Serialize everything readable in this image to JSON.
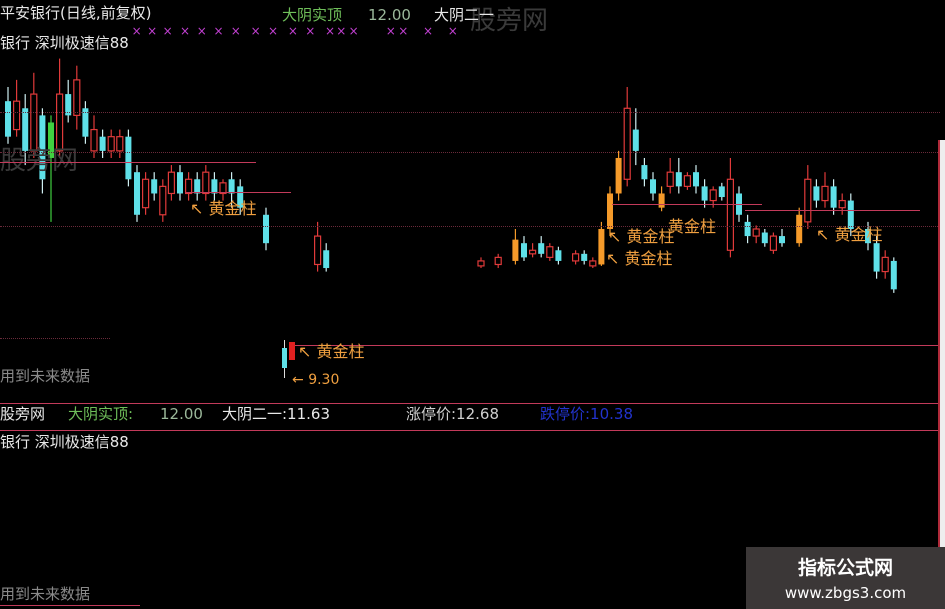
{
  "header": {
    "title": "平安银行(日线,前复权)",
    "ind1_label": "大阴实顶",
    "ind1_value": "12.00",
    "ind2_label": "大阴二一",
    "subtitle": "银行 深圳极速信88"
  },
  "info_bar": {
    "site": "股旁网",
    "ind1_label": "大阴实顶:",
    "ind1_value": "12.00",
    "ind2": "大阴二一:11.63",
    "limit_up": "涨停价:12.68",
    "limit_down": "跌停价:10.38",
    "subtitle": "银行 深圳极速信88"
  },
  "watermarks": {
    "site": "股旁网",
    "future_data": "用到未来数据"
  },
  "annotations": {
    "golden": "黄金柱",
    "arrow": "↖",
    "low_price": "9.30"
  },
  "badge": {
    "name": "指标公式网",
    "url": "www.zbgs3.com"
  },
  "colors": {
    "up": "#e03a3a",
    "down": "#5fe0e8",
    "golden": "#f59a2a",
    "special": "#40d040",
    "line": "#c23a5a"
  },
  "chart_data": {
    "type": "candlestick",
    "title": "平安银行(日线,前复权)",
    "reference_lines": [
      12.0,
      11.63
    ],
    "candles": [
      {
        "i": 0,
        "o": 12.1,
        "c": 11.6,
        "h": 12.3,
        "l": 11.5,
        "k": "down"
      },
      {
        "i": 1,
        "o": 11.7,
        "c": 12.1,
        "h": 12.4,
        "l": 11.6,
        "k": "up"
      },
      {
        "i": 2,
        "o": 12.0,
        "c": 11.4,
        "h": 12.2,
        "l": 11.2,
        "k": "down"
      },
      {
        "i": 3,
        "o": 11.4,
        "c": 12.2,
        "h": 12.5,
        "l": 11.3,
        "k": "up"
      },
      {
        "i": 4,
        "o": 11.9,
        "c": 11.0,
        "h": 12.0,
        "l": 10.8,
        "k": "down"
      },
      {
        "i": 5,
        "o": 11.3,
        "c": 11.8,
        "h": 11.9,
        "l": 10.4,
        "k": "special"
      },
      {
        "i": 6,
        "o": 11.4,
        "c": 12.2,
        "h": 12.7,
        "l": 11.3,
        "k": "up"
      },
      {
        "i": 7,
        "o": 12.2,
        "c": 11.9,
        "h": 12.4,
        "l": 11.8,
        "k": "down"
      },
      {
        "i": 8,
        "o": 11.9,
        "c": 12.4,
        "h": 12.6,
        "l": 11.7,
        "k": "up"
      },
      {
        "i": 9,
        "o": 12.0,
        "c": 11.6,
        "h": 12.1,
        "l": 11.5,
        "k": "down"
      },
      {
        "i": 10,
        "o": 11.4,
        "c": 11.7,
        "h": 11.9,
        "l": 11.3,
        "k": "up"
      },
      {
        "i": 11,
        "o": 11.6,
        "c": 11.4,
        "h": 11.7,
        "l": 11.3,
        "k": "down"
      },
      {
        "i": 12,
        "o": 11.4,
        "c": 11.6,
        "h": 11.7,
        "l": 11.3,
        "k": "up"
      },
      {
        "i": 13,
        "o": 11.4,
        "c": 11.6,
        "h": 11.7,
        "l": 11.3,
        "k": "up"
      },
      {
        "i": 14,
        "o": 11.6,
        "c": 11.0,
        "h": 11.7,
        "l": 10.9,
        "k": "down"
      },
      {
        "i": 15,
        "o": 11.1,
        "c": 10.5,
        "h": 11.2,
        "l": 10.4,
        "k": "down"
      },
      {
        "i": 16,
        "o": 10.6,
        "c": 11.0,
        "h": 11.1,
        "l": 10.5,
        "k": "up"
      },
      {
        "i": 17,
        "o": 11.0,
        "c": 10.8,
        "h": 11.1,
        "l": 10.7,
        "k": "down"
      },
      {
        "i": 18,
        "o": 10.5,
        "c": 10.9,
        "h": 11.0,
        "l": 10.4,
        "k": "up"
      },
      {
        "i": 19,
        "o": 10.8,
        "c": 11.1,
        "h": 11.2,
        "l": 10.7,
        "k": "up"
      },
      {
        "i": 20,
        "o": 11.1,
        "c": 10.8,
        "h": 11.2,
        "l": 10.7,
        "k": "down"
      },
      {
        "i": 21,
        "o": 10.8,
        "c": 11.0,
        "h": 11.1,
        "l": 10.7,
        "k": "up"
      },
      {
        "i": 22,
        "o": 11.0,
        "c": 10.8,
        "h": 11.1,
        "l": 10.7,
        "k": "down"
      },
      {
        "i": 23,
        "o": 10.8,
        "c": 11.1,
        "h": 11.2,
        "l": 10.7,
        "k": "up"
      },
      {
        "i": 24,
        "o": 11.0,
        "c": 10.8,
        "h": 11.1,
        "l": 10.7,
        "k": "down"
      },
      {
        "i": 25,
        "o": 10.8,
        "c": 10.95,
        "h": 11.0,
        "l": 10.7,
        "k": "up"
      },
      {
        "i": 26,
        "o": 11.0,
        "c": 10.8,
        "h": 11.1,
        "l": 10.6,
        "k": "down"
      },
      {
        "i": 27,
        "o": 10.9,
        "c": 10.6,
        "h": 11.0,
        "l": 10.5,
        "k": "down"
      },
      {
        "i": 30,
        "o": 10.5,
        "c": 10.1,
        "h": 10.6,
        "l": 10.0,
        "k": "down"
      },
      {
        "i": 36,
        "o": 9.8,
        "c": 10.2,
        "h": 10.4,
        "l": 9.7,
        "k": "up"
      },
      {
        "i": 37,
        "o": 10.0,
        "c": 9.75,
        "h": 10.1,
        "l": 9.7,
        "k": "down"
      },
      {
        "i": 55,
        "o": 9.78,
        "c": 9.85,
        "h": 9.9,
        "l": 9.75,
        "k": "up"
      },
      {
        "i": 57,
        "o": 9.8,
        "c": 9.9,
        "h": 9.95,
        "l": 9.75,
        "k": "up"
      },
      {
        "i": 59,
        "o": 9.85,
        "c": 10.15,
        "h": 10.3,
        "l": 9.8,
        "k": "golden"
      },
      {
        "i": 60,
        "o": 10.1,
        "c": 9.9,
        "h": 10.2,
        "l": 9.85,
        "k": "down"
      },
      {
        "i": 61,
        "o": 9.95,
        "c": 10.0,
        "h": 10.1,
        "l": 9.9,
        "k": "up"
      },
      {
        "i": 62,
        "o": 10.1,
        "c": 9.95,
        "h": 10.2,
        "l": 9.9,
        "k": "down"
      },
      {
        "i": 63,
        "o": 9.9,
        "c": 10.05,
        "h": 10.1,
        "l": 9.85,
        "k": "up"
      },
      {
        "i": 64,
        "o": 10.0,
        "c": 9.85,
        "h": 10.05,
        "l": 9.8,
        "k": "down"
      },
      {
        "i": 66,
        "o": 9.85,
        "c": 9.95,
        "h": 10.0,
        "l": 9.8,
        "k": "up"
      },
      {
        "i": 67,
        "o": 9.95,
        "c": 9.85,
        "h": 10.0,
        "l": 9.8,
        "k": "down"
      },
      {
        "i": 68,
        "o": 9.78,
        "c": 9.85,
        "h": 9.9,
        "l": 9.75,
        "k": "up"
      },
      {
        "i": 69,
        "o": 9.8,
        "c": 10.3,
        "h": 10.4,
        "l": 9.78,
        "k": "golden"
      },
      {
        "i": 70,
        "o": 10.3,
        "c": 10.8,
        "h": 10.9,
        "l": 10.2,
        "k": "golden"
      },
      {
        "i": 71,
        "o": 10.8,
        "c": 11.3,
        "h": 11.4,
        "l": 10.7,
        "k": "golden"
      },
      {
        "i": 72,
        "o": 11.0,
        "c": 12.0,
        "h": 12.3,
        "l": 10.9,
        "k": "up"
      },
      {
        "i": 73,
        "o": 11.7,
        "c": 11.4,
        "h": 12.0,
        "l": 11.2,
        "k": "down"
      },
      {
        "i": 74,
        "o": 11.2,
        "c": 11.0,
        "h": 11.3,
        "l": 10.9,
        "k": "down"
      },
      {
        "i": 75,
        "o": 11.0,
        "c": 10.8,
        "h": 11.1,
        "l": 10.7,
        "k": "down"
      },
      {
        "i": 76,
        "o": 10.8,
        "c": 10.6,
        "h": 10.9,
        "l": 10.55,
        "k": "golden"
      },
      {
        "i": 77,
        "o": 10.9,
        "c": 11.1,
        "h": 11.3,
        "l": 10.8,
        "k": "up"
      },
      {
        "i": 78,
        "o": 11.1,
        "c": 10.9,
        "h": 11.3,
        "l": 10.8,
        "k": "down"
      },
      {
        "i": 79,
        "o": 10.9,
        "c": 11.05,
        "h": 11.1,
        "l": 10.85,
        "k": "up"
      },
      {
        "i": 80,
        "o": 11.1,
        "c": 10.9,
        "h": 11.2,
        "l": 10.8,
        "k": "down"
      },
      {
        "i": 81,
        "o": 10.9,
        "c": 10.7,
        "h": 11.0,
        "l": 10.6,
        "k": "down"
      },
      {
        "i": 82,
        "o": 10.7,
        "c": 10.85,
        "h": 10.9,
        "l": 10.6,
        "k": "up"
      },
      {
        "i": 83,
        "o": 10.75,
        "c": 10.9,
        "h": 10.95,
        "l": 10.7,
        "k": "down"
      },
      {
        "i": 84,
        "o": 10.0,
        "c": 11.0,
        "h": 11.3,
        "l": 9.9,
        "k": "up"
      },
      {
        "i": 85,
        "o": 10.8,
        "c": 10.5,
        "h": 10.9,
        "l": 10.4,
        "k": "down"
      },
      {
        "i": 86,
        "o": 10.4,
        "c": 10.2,
        "h": 10.5,
        "l": 10.1,
        "k": "down"
      },
      {
        "i": 87,
        "o": 10.2,
        "c": 10.3,
        "h": 10.35,
        "l": 10.1,
        "k": "up"
      },
      {
        "i": 88,
        "o": 10.25,
        "c": 10.1,
        "h": 10.3,
        "l": 10.05,
        "k": "down"
      },
      {
        "i": 89,
        "o": 10.0,
        "c": 10.2,
        "h": 10.25,
        "l": 9.95,
        "k": "up"
      },
      {
        "i": 90,
        "o": 10.2,
        "c": 10.1,
        "h": 10.3,
        "l": 10.05,
        "k": "down"
      },
      {
        "i": 92,
        "o": 10.1,
        "c": 10.5,
        "h": 10.6,
        "l": 10.05,
        "k": "golden"
      },
      {
        "i": 93,
        "o": 10.4,
        "c": 11.0,
        "h": 11.2,
        "l": 10.3,
        "k": "up"
      },
      {
        "i": 94,
        "o": 10.9,
        "c": 10.7,
        "h": 11.0,
        "l": 10.6,
        "k": "down"
      },
      {
        "i": 95,
        "o": 10.7,
        "c": 10.9,
        "h": 11.1,
        "l": 10.6,
        "k": "up"
      },
      {
        "i": 96,
        "o": 10.9,
        "c": 10.6,
        "h": 11.0,
        "l": 10.5,
        "k": "down"
      },
      {
        "i": 97,
        "o": 10.6,
        "c": 10.7,
        "h": 10.8,
        "l": 10.5,
        "k": "up"
      },
      {
        "i": 98,
        "o": 10.7,
        "c": 10.3,
        "h": 10.8,
        "l": 10.2,
        "k": "down"
      },
      {
        "i": 100,
        "o": 10.3,
        "c": 10.1,
        "h": 10.4,
        "l": 10.0,
        "k": "down"
      },
      {
        "i": 101,
        "o": 10.1,
        "c": 9.7,
        "h": 10.2,
        "l": 9.6,
        "k": "down"
      },
      {
        "i": 102,
        "o": 9.7,
        "c": 9.9,
        "h": 10.0,
        "l": 9.6,
        "k": "up"
      },
      {
        "i": 103,
        "o": 9.85,
        "c": 9.45,
        "h": 9.9,
        "l": 9.4,
        "k": "down"
      }
    ]
  }
}
